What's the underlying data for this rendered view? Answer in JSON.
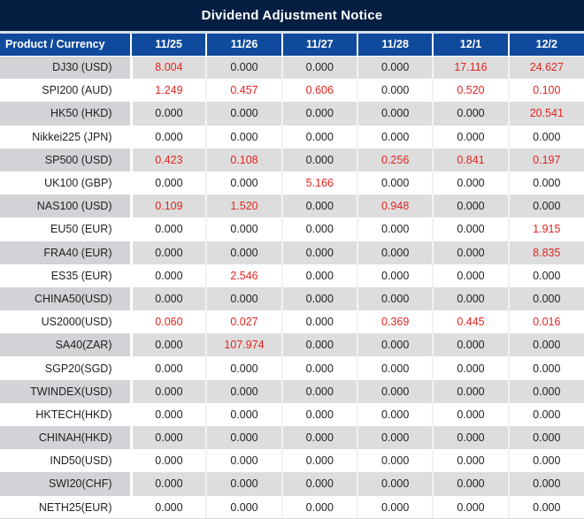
{
  "title": "Dividend Adjustment Notice",
  "table": {
    "product_header": "Product / Currency",
    "date_headers": [
      "11/25",
      "11/26",
      "11/27",
      "11/28",
      "12/1",
      "12/2"
    ],
    "zero_display": "0.000",
    "rows": [
      {
        "product": "DJ30 (USD)",
        "values": [
          "8.004",
          "0.000",
          "0.000",
          "0.000",
          "17.116",
          "24.627"
        ]
      },
      {
        "product": "SPI200 (AUD)",
        "values": [
          "1.249",
          "0.457",
          "0.606",
          "0.000",
          "0.520",
          "0.100"
        ]
      },
      {
        "product": "HK50 (HKD)",
        "values": [
          "0.000",
          "0.000",
          "0.000",
          "0.000",
          "0.000",
          "20.541"
        ]
      },
      {
        "product": "Nikkei225 (JPN)",
        "values": [
          "0.000",
          "0.000",
          "0.000",
          "0.000",
          "0.000",
          "0.000"
        ]
      },
      {
        "product": "SP500 (USD)",
        "values": [
          "0.423",
          "0.108",
          "0.000",
          "0.256",
          "0.841",
          "0.197"
        ]
      },
      {
        "product": "UK100 (GBP)",
        "values": [
          "0.000",
          "0.000",
          "5.166",
          "0.000",
          "0.000",
          "0.000"
        ]
      },
      {
        "product": "NAS100 (USD)",
        "values": [
          "0.109",
          "1.520",
          "0.000",
          "0.948",
          "0.000",
          "0.000"
        ]
      },
      {
        "product": "EU50 (EUR)",
        "values": [
          "0.000",
          "0.000",
          "0.000",
          "0.000",
          "0.000",
          "1.915"
        ]
      },
      {
        "product": "FRA40 (EUR)",
        "values": [
          "0.000",
          "0.000",
          "0.000",
          "0.000",
          "0.000",
          "8.835"
        ]
      },
      {
        "product": "ES35 (EUR)",
        "values": [
          "0.000",
          "2.546",
          "0.000",
          "0.000",
          "0.000",
          "0.000"
        ]
      },
      {
        "product": "CHINA50(USD)",
        "values": [
          "0.000",
          "0.000",
          "0.000",
          "0.000",
          "0.000",
          "0.000"
        ]
      },
      {
        "product": "US2000(USD)",
        "values": [
          "0.060",
          "0.027",
          "0.000",
          "0.369",
          "0.445",
          "0.016"
        ]
      },
      {
        "product": "SA40(ZAR)",
        "values": [
          "0.000",
          "107.974",
          "0.000",
          "0.000",
          "0.000",
          "0.000"
        ]
      },
      {
        "product": "SGP20(SGD)",
        "values": [
          "0.000",
          "0.000",
          "0.000",
          "0.000",
          "0.000",
          "0.000"
        ]
      },
      {
        "product": "TWINDEX(USD)",
        "values": [
          "0.000",
          "0.000",
          "0.000",
          "0.000",
          "0.000",
          "0.000"
        ]
      },
      {
        "product": "HKTECH(HKD)",
        "values": [
          "0.000",
          "0.000",
          "0.000",
          "0.000",
          "0.000",
          "0.000"
        ]
      },
      {
        "product": "CHINAH(HKD)",
        "values": [
          "0.000",
          "0.000",
          "0.000",
          "0.000",
          "0.000",
          "0.000"
        ]
      },
      {
        "product": "IND50(USD)",
        "values": [
          "0.000",
          "0.000",
          "0.000",
          "0.000",
          "0.000",
          "0.000"
        ]
      },
      {
        "product": "SWI20(CHF)",
        "values": [
          "0.000",
          "0.000",
          "0.000",
          "0.000",
          "0.000",
          "0.000"
        ]
      },
      {
        "product": "NETH25(EUR)",
        "values": [
          "0.000",
          "0.000",
          "0.000",
          "0.000",
          "0.000",
          "0.000"
        ]
      }
    ]
  },
  "colors": {
    "title_bar_bg": "#051f43",
    "title_separator": "#d7dfee",
    "header_bg": "#0f4a9c",
    "header_text": "#ffffff",
    "stripe_bg": "#dddddd",
    "stripe_first_col_bg": "#d3d3d7",
    "zero_value_color": "#1f1f1f",
    "nonzero_value_color": "#e32420",
    "bottom_border": "#d9d9d9"
  }
}
